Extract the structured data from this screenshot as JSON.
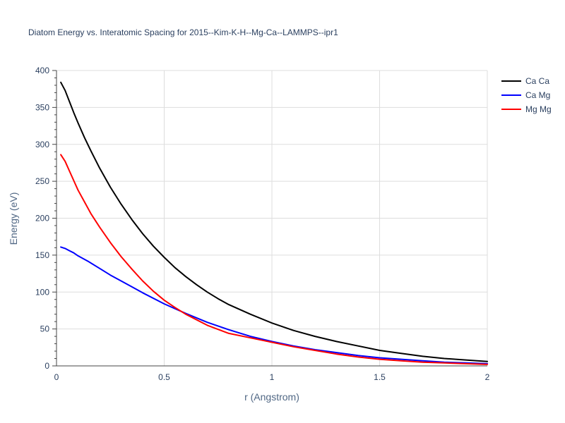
{
  "chart_data": {
    "type": "line",
    "title": "Diatom Energy vs. Interatomic Spacing for 2015--Kim-K-H--Mg-Ca--LAMMPS--ipr1",
    "xlabel": "r (Angstrom)",
    "ylabel": "Energy (eV)",
    "xlim": [
      0,
      2
    ],
    "ylim": [
      0,
      400
    ],
    "xticks": [
      0,
      0.5,
      1,
      1.5,
      2
    ],
    "xtick_labels": [
      "0",
      "0.5",
      "1",
      "1.5",
      "2"
    ],
    "yticks": [
      0,
      50,
      100,
      150,
      200,
      250,
      300,
      350,
      400
    ],
    "ytick_labels": [
      "0",
      "50",
      "100",
      "150",
      "200",
      "250",
      "300",
      "350",
      "400"
    ],
    "grid": true,
    "legend_position": "top-right",
    "series": [
      {
        "name": "Ca Ca",
        "color": "#000000",
        "x": [
          0.02,
          0.04,
          0.06,
          0.08,
          0.1,
          0.13,
          0.16,
          0.2,
          0.25,
          0.3,
          0.35,
          0.4,
          0.45,
          0.5,
          0.55,
          0.6,
          0.65,
          0.7,
          0.75,
          0.8,
          0.9,
          1.0,
          1.1,
          1.2,
          1.3,
          1.4,
          1.5,
          1.6,
          1.7,
          1.8,
          1.9,
          2.0
        ],
        "values": [
          384,
          373,
          358,
          343,
          329,
          309,
          291,
          268,
          242,
          219,
          198,
          179,
          162,
          147,
          133,
          121,
          110,
          100,
          91,
          83,
          70,
          58,
          48,
          40,
          33,
          27,
          21,
          17,
          13,
          10,
          8,
          6
        ]
      },
      {
        "name": "Ca Mg",
        "color": "#0000ff",
        "x": [
          0.02,
          0.04,
          0.06,
          0.08,
          0.1,
          0.15,
          0.2,
          0.25,
          0.3,
          0.35,
          0.4,
          0.5,
          0.6,
          0.7,
          0.8,
          0.9,
          1.0,
          1.1,
          1.2,
          1.3,
          1.4,
          1.5,
          1.6,
          1.7,
          1.8,
          1.9,
          2.0
        ],
        "values": [
          161,
          159,
          156,
          153,
          149,
          141,
          132,
          123,
          115,
          107,
          99,
          84,
          71,
          59,
          49,
          40,
          33,
          27,
          22,
          18,
          14,
          11,
          9,
          7,
          5,
          4,
          3
        ]
      },
      {
        "name": "Mg Mg",
        "color": "#ff0000",
        "x": [
          0.02,
          0.04,
          0.06,
          0.08,
          0.1,
          0.13,
          0.16,
          0.2,
          0.25,
          0.3,
          0.35,
          0.4,
          0.45,
          0.5,
          0.55,
          0.6,
          0.7,
          0.8,
          0.9,
          1.0,
          1.1,
          1.2,
          1.3,
          1.4,
          1.5,
          1.6,
          1.7,
          1.8,
          1.9,
          2.0
        ],
        "values": [
          286,
          277,
          264,
          251,
          238,
          222,
          206,
          188,
          167,
          148,
          131,
          115,
          101,
          89,
          79,
          70,
          55,
          44,
          38,
          32,
          26,
          21,
          16,
          12,
          9,
          7,
          5,
          4,
          3,
          2
        ]
      }
    ]
  }
}
